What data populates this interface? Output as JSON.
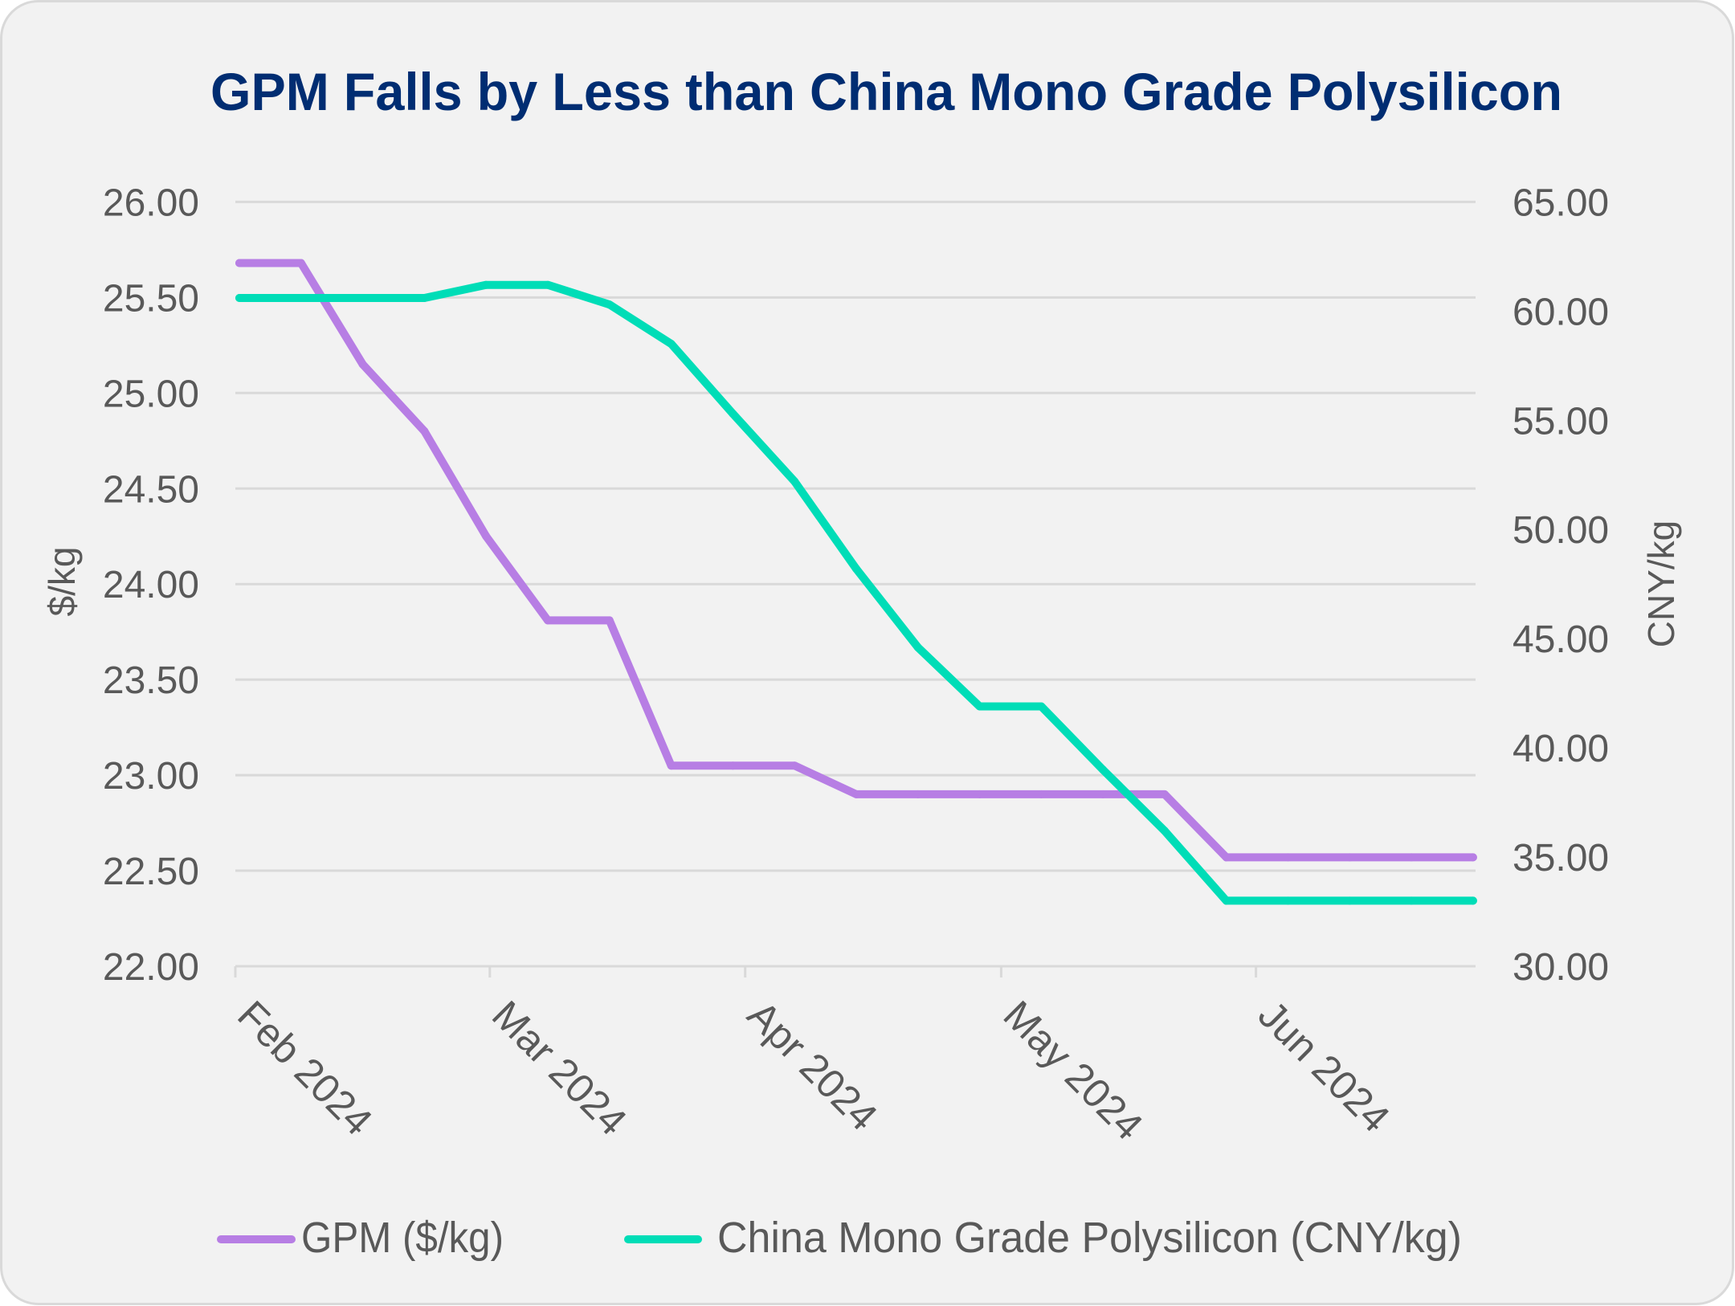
{
  "chart_data": {
    "type": "line",
    "title": "GPM Falls by Less than China Mono Grade Polysilicon",
    "xlabel": "",
    "ylabel": "$/kg",
    "y2label": "CNY/kg",
    "x_unit": "weeks",
    "x": [
      0,
      1,
      2,
      3,
      4,
      5,
      6,
      7,
      8,
      9,
      10,
      11,
      12,
      13,
      14,
      15,
      16,
      17,
      18,
      19,
      20
    ],
    "xlim": [
      -0.065,
      20.04
    ],
    "x_ticks": [
      {
        "label": "Feb 2024",
        "at": -0.065
      },
      {
        "label": "Mar 2024",
        "at": 4.06
      },
      {
        "label": "Apr 2024",
        "at": 8.2
      },
      {
        "label": "May 2024",
        "at": 12.35
      },
      {
        "label": "Jun 2024",
        "at": 16.48
      }
    ],
    "ylim": [
      22,
      26
    ],
    "y_ticks": [
      "22.00",
      "22.50",
      "23.00",
      "23.50",
      "24.00",
      "24.50",
      "25.00",
      "25.50",
      "26.00"
    ],
    "y2lim": [
      30,
      65
    ],
    "y2_ticks": [
      "30.00",
      "35.00",
      "40.00",
      "45.00",
      "50.00",
      "55.00",
      "60.00",
      "65.00"
    ],
    "grid": true,
    "legend_position": "bottom",
    "series": [
      {
        "name": "GPM ($/kg)",
        "axis": "left",
        "color": "#B77EE4",
        "values": [
          25.68,
          25.68,
          25.15,
          24.8,
          24.25,
          23.81,
          23.81,
          23.05,
          23.05,
          23.05,
          22.9,
          22.9,
          22.9,
          22.9,
          22.9,
          22.9,
          22.57,
          22.57,
          22.57,
          22.57,
          22.57
        ]
      },
      {
        "name": "China Mono Grade Polysilicon (CNY/kg)",
        "axis": "right",
        "color": "#00DDB7",
        "values": [
          60.6,
          60.6,
          60.6,
          60.6,
          61.2,
          61.2,
          60.3,
          58.5,
          55.3,
          52.2,
          48.2,
          44.6,
          41.9,
          41.9,
          39.0,
          36.2,
          33.0,
          33.0,
          33.0,
          33.0,
          33.0
        ]
      }
    ],
    "colors": {
      "title": "#002D72",
      "text": "#595959",
      "grid": "#D9D9D9",
      "background": "#F2F2F2"
    }
  }
}
